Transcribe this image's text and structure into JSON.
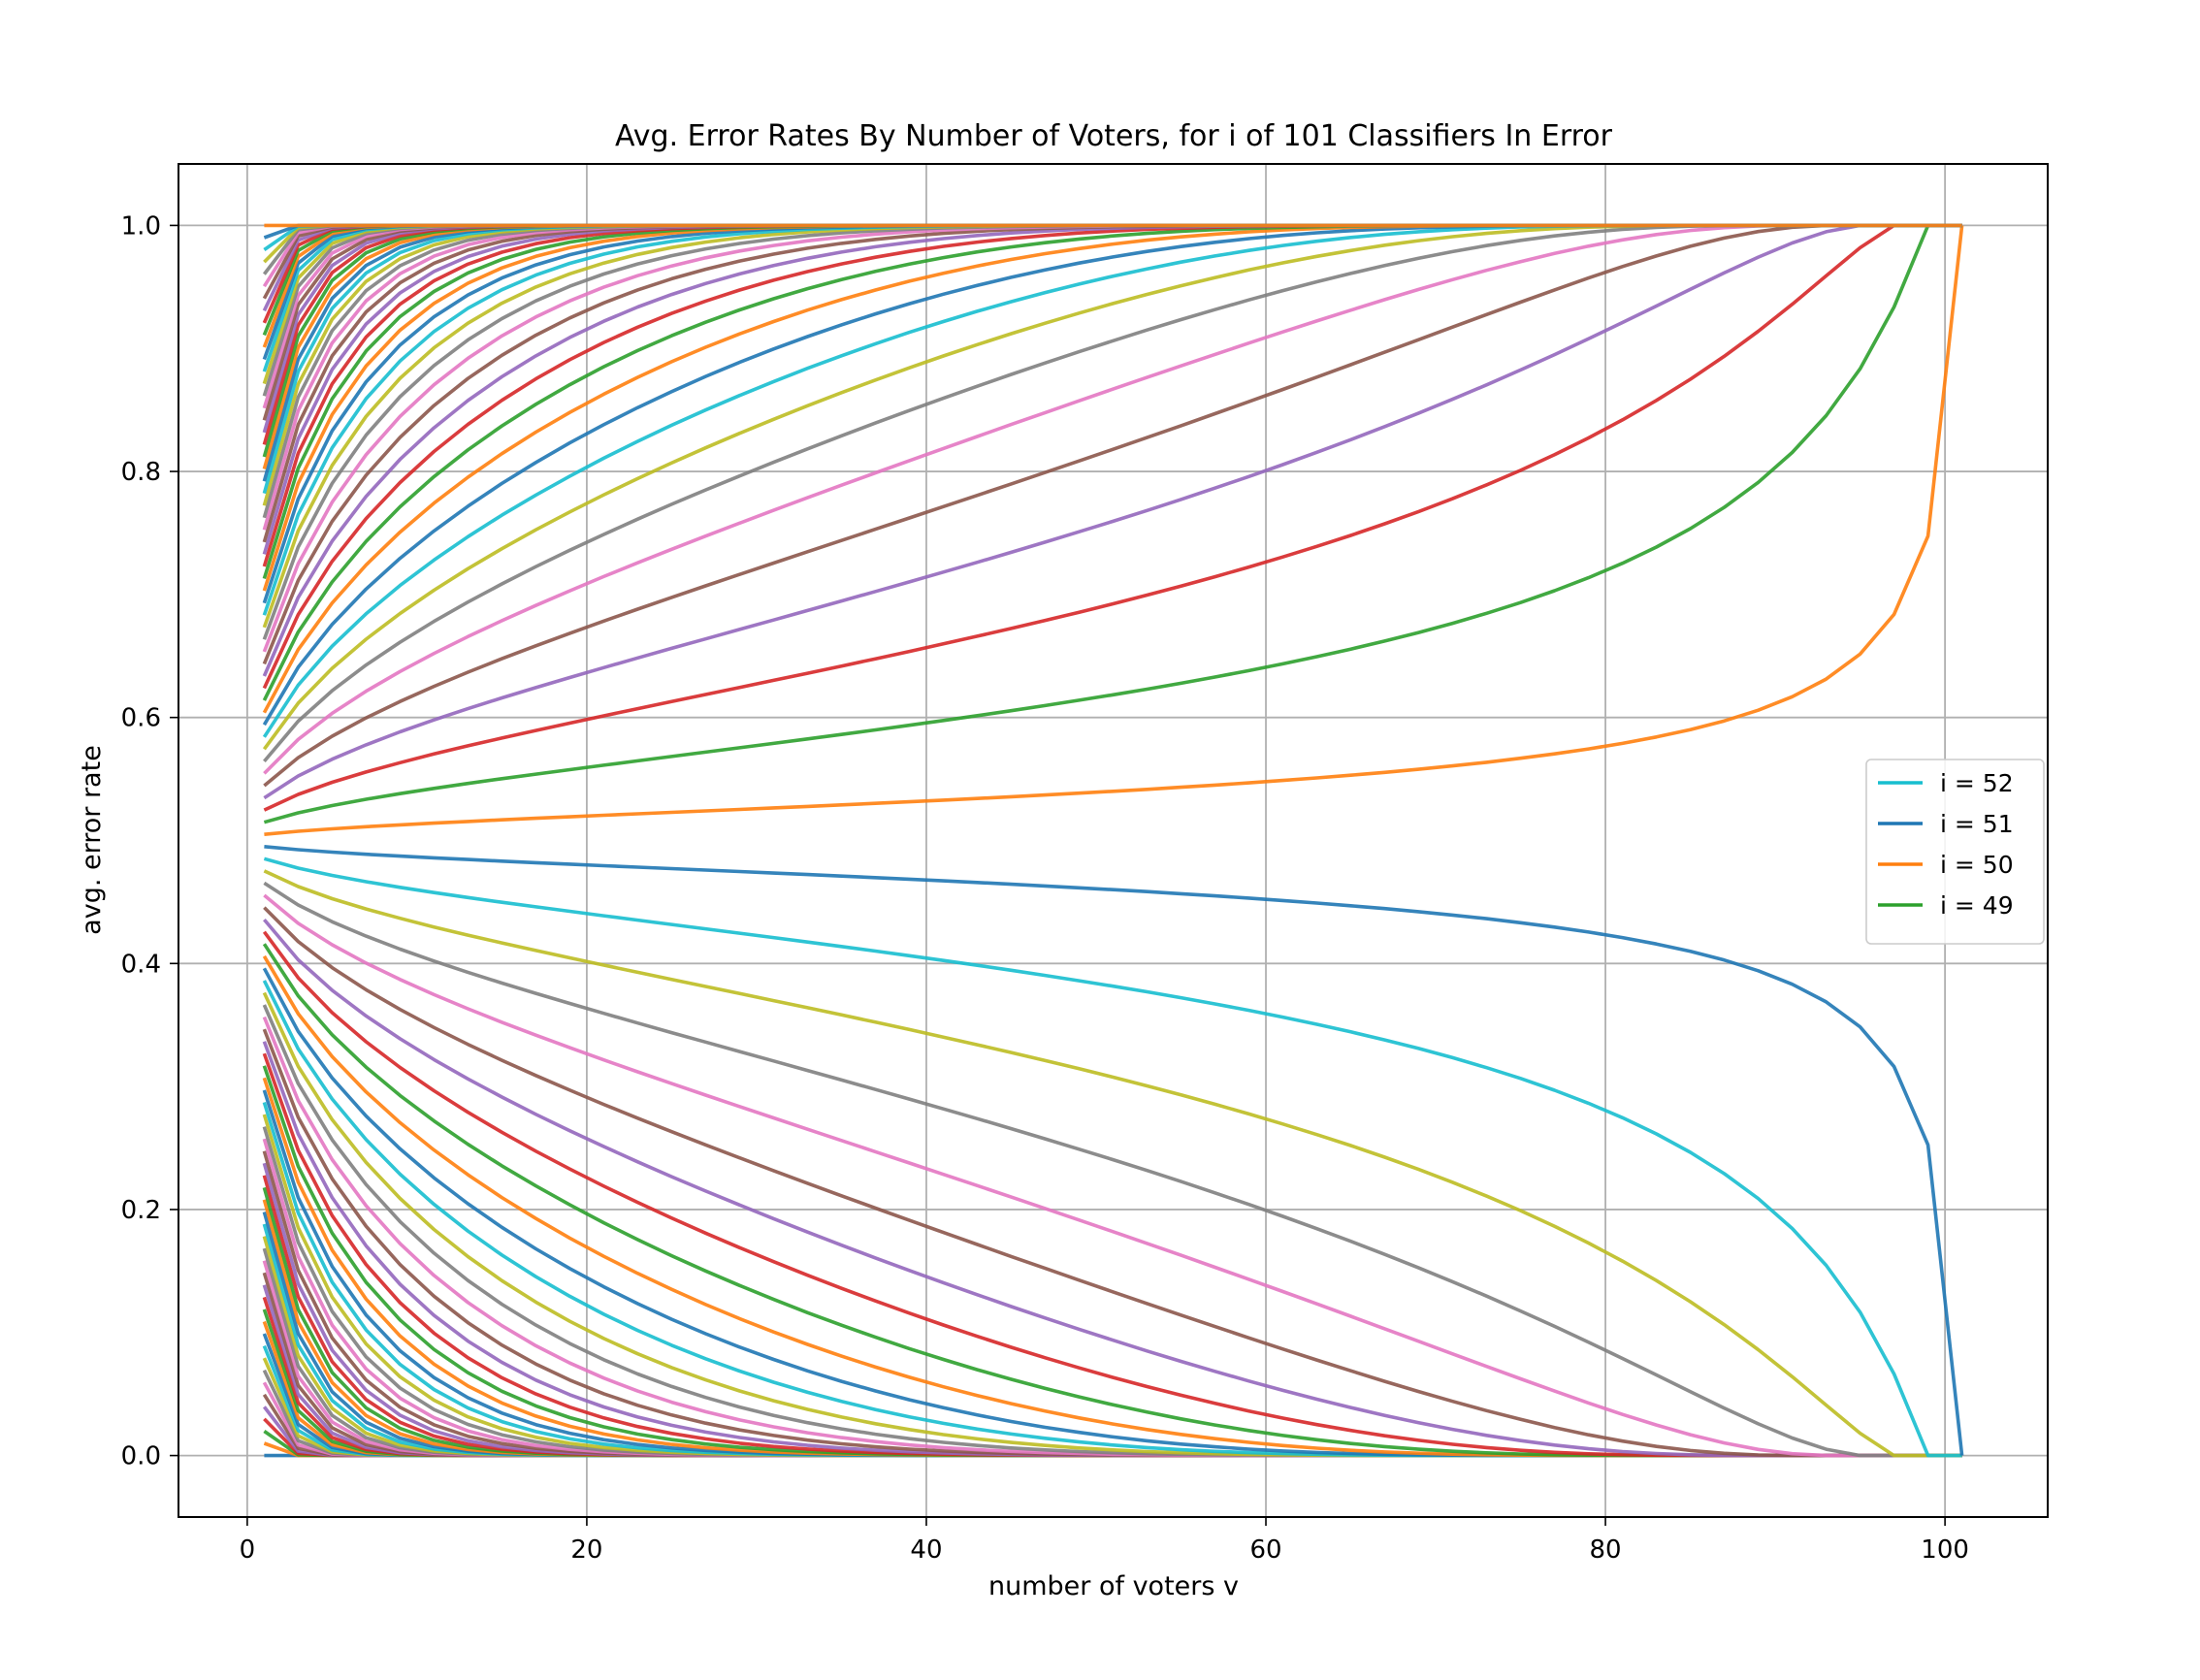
{
  "chart_data": {
    "type": "line",
    "title": "Avg. Error Rates By Number of Voters, for i of 101 Classifiers In Error",
    "xlabel": "number of voters v",
    "ylabel": "avg. error rate",
    "xlim": [
      -4.05,
      106.05
    ],
    "ylim": [
      -0.05,
      1.05
    ],
    "xticks": [
      0,
      20,
      40,
      60,
      80,
      100
    ],
    "xtick_labels": [
      "0",
      "20",
      "40",
      "60",
      "80",
      "100"
    ],
    "yticks": [
      0.0,
      0.2,
      0.4,
      0.6,
      0.8,
      1.0
    ],
    "ytick_labels": [
      "0.0",
      "0.2",
      "0.4",
      "0.6",
      "0.8",
      "1.0"
    ],
    "grid": true,
    "legend_position": "center-right",
    "n_classifiers": 101,
    "x_values": "odd v from 1 to 101",
    "palette": [
      "#1f77b4",
      "#ff7f0e",
      "#2ca02c",
      "#d62728",
      "#9467bd",
      "#8c564b",
      "#e377c2",
      "#7f7f7f",
      "#bcbd22",
      "#17becf"
    ],
    "series_description": "One line per i = 0..101: average majority-vote error rate over all size-v subsets of 101 classifiers when i of them are in error",
    "legend": [
      {
        "label": "i = 52",
        "color": "#17becf"
      },
      {
        "label": "i = 51",
        "color": "#1f77b4"
      },
      {
        "label": "i = 50",
        "color": "#ff7f0e"
      },
      {
        "label": "i = 49",
        "color": "#2ca02c"
      }
    ]
  }
}
